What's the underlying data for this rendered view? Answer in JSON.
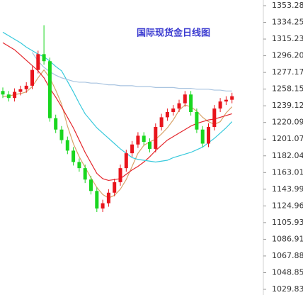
{
  "chart_data": {
    "type": "candlestick",
    "title": "国际现货金日线图",
    "ylim": [
      1029.83,
      1353.28
    ],
    "yticks": [
      1353.28,
      1334.25,
      1315.23,
      {
        "value": 1296.2,
        "label": "1296.20"
      },
      1277.17,
      1258.15,
      1239.12,
      1220.09,
      1201.07,
      1182.04,
      1163.01,
      1143.99,
      1124.96,
      1105.93,
      1086.91,
      1067.88,
      1048.85,
      1029.83
    ],
    "up_color": "#e8141c",
    "down_color": "#19d61f",
    "open": [
      1256,
      1252,
      1248,
      1255,
      1258,
      1262,
      1280,
      1298,
      1290,
      1225,
      1212,
      1200,
      1188,
      1175,
      1168,
      1155,
      1142,
      1122,
      1128,
      1140,
      1152,
      1168,
      1185,
      1195,
      1205,
      1198,
      1190,
      1215,
      1226,
      1232,
      1236,
      1242,
      1252,
      1232,
      1212,
      1196,
      1215,
      1236,
      1244,
      1246
    ],
    "high": [
      1260,
      1256,
      1259,
      1262,
      1266,
      1284,
      1302,
      1331,
      1294,
      1229,
      1216,
      1204,
      1192,
      1179,
      1172,
      1159,
      1146,
      1132,
      1144,
      1156,
      1172,
      1189,
      1199,
      1209,
      1209,
      1202,
      1219,
      1230,
      1236,
      1240,
      1246,
      1256,
      1256,
      1236,
      1216,
      1219,
      1240,
      1248,
      1250,
      1254
    ],
    "low": [
      1248,
      1244,
      1244,
      1251,
      1254,
      1258,
      1276,
      1286,
      1221,
      1208,
      1196,
      1184,
      1171,
      1164,
      1151,
      1138,
      1118,
      1118,
      1124,
      1136,
      1148,
      1164,
      1181,
      1191,
      1194,
      1186,
      1186,
      1211,
      1222,
      1228,
      1232,
      1238,
      1228,
      1208,
      1192,
      1192,
      1211,
      1232,
      1240,
      1242
    ],
    "close": [
      1252,
      1248,
      1255,
      1258,
      1262,
      1280,
      1298,
      1290,
      1225,
      1212,
      1200,
      1188,
      1175,
      1168,
      1155,
      1142,
      1122,
      1128,
      1140,
      1152,
      1168,
      1185,
      1195,
      1205,
      1198,
      1190,
      1215,
      1226,
      1232,
      1236,
      1242,
      1252,
      1232,
      1212,
      1196,
      1215,
      1236,
      1244,
      1246,
      1250
    ],
    "series": [
      {
        "color": "#d9a36a",
        "values": [
          1250,
          1250,
          1252,
          1253,
          1255,
          1261,
          1271,
          1280,
          1271,
          1257,
          1241,
          1216,
          1196,
          1181,
          1169,
          1157,
          1146,
          1138,
          1134,
          1137,
          1144,
          1155,
          1170,
          1185,
          1194,
          1198,
          1201,
          1207,
          1214,
          1223,
          1234,
          1240,
          1238,
          1233,
          1226,
          1221,
          1218,
          1221,
          1231,
          1238
        ]
      },
      {
        "color": "#e4262c",
        "values": [
          1311,
          1307,
          1303,
          1297,
          1291,
          1285,
          1279,
          1271,
          1259,
          1249,
          1238,
          1226,
          1214,
          1200,
          1186,
          1174,
          1162,
          1156,
          1154,
          1155,
          1156,
          1161,
          1166,
          1170,
          1175,
          1181,
          1188,
          1194,
          1200,
          1204,
          1208,
          1212,
          1216,
          1219,
          1221,
          1223,
          1224,
          1226,
          1228,
          1230
        ]
      },
      {
        "color": "#37c9dc",
        "values": [
          1323,
          1319,
          1315,
          1311,
          1306,
          1302,
          1298,
          1295,
          1290,
          1284,
          1279,
          1267,
          1255,
          1242,
          1230,
          1222,
          1214,
          1208,
          1202,
          1196,
          1190,
          1185,
          1180,
          1178,
          1177,
          1176,
          1175,
          1176,
          1177,
          1180,
          1182,
          1184,
          1186,
          1189,
          1192,
          1197,
          1202,
          1208,
          1214,
          1221
        ]
      },
      {
        "color": "#a9c4e0",
        "values": [
          null,
          null,
          null,
          null,
          null,
          1300,
          1290,
          1283,
          1278,
          1274,
          1271,
          1269,
          1267,
          1266,
          1266,
          1265,
          1265,
          1264,
          1263,
          1263,
          1262,
          1262,
          1262,
          1261,
          1261,
          1261,
          1260,
          1260,
          1260,
          1260,
          1259,
          1259,
          1259,
          1258,
          1258,
          1258,
          1257,
          1257,
          1256,
          1256
        ]
      }
    ]
  }
}
